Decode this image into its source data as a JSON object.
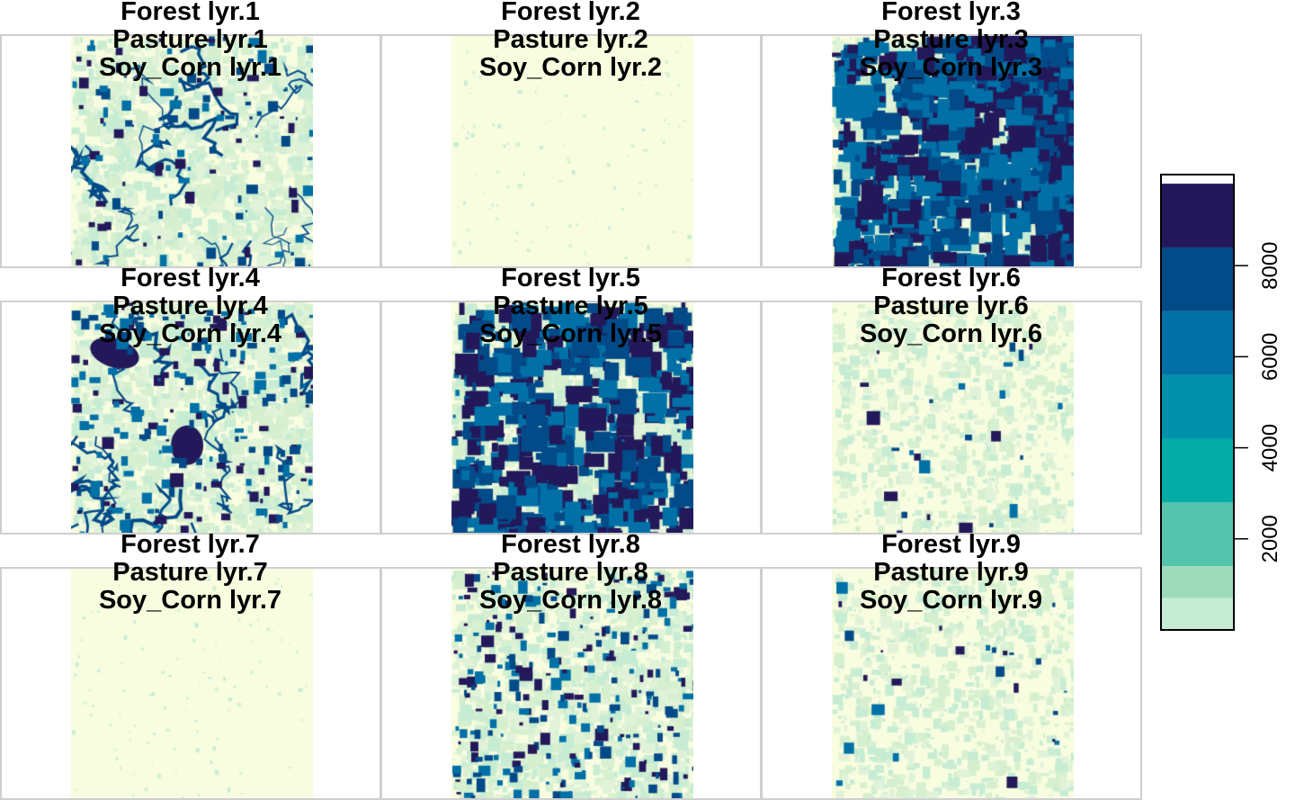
{
  "chart_data": {
    "type": "heatmap",
    "description_kind": "raster panel grid",
    "panels": [
      {
        "titles": [
          "Forest lyr.1",
          "Pasture lyr.1",
          "Soy_Corn lyr.1"
        ],
        "pattern": "rivers"
      },
      {
        "titles": [
          "Forest lyr.2",
          "Pasture lyr.2",
          "Soy_Corn lyr.2"
        ],
        "pattern": "sparse"
      },
      {
        "titles": [
          "Forest lyr.3",
          "Pasture lyr.3",
          "Soy_Corn lyr.3"
        ],
        "pattern": "dense"
      },
      {
        "titles": [
          "Forest lyr.4",
          "Pasture lyr.4",
          "Soy_Corn lyr.4"
        ],
        "pattern": "urban"
      },
      {
        "titles": [
          "Forest lyr.5",
          "Pasture lyr.5",
          "Soy_Corn lyr.5"
        ],
        "pattern": "patches"
      },
      {
        "titles": [
          "Forest lyr.6",
          "Pasture lyr.6",
          "Soy_Corn lyr.6"
        ],
        "pattern": "light"
      },
      {
        "titles": [
          "Forest lyr.7",
          "Pasture lyr.7",
          "Soy_Corn lyr.7"
        ],
        "pattern": "sparse"
      },
      {
        "titles": [
          "Forest lyr.8",
          "Pasture lyr.8",
          "Soy_Corn lyr.8"
        ],
        "pattern": "medium"
      },
      {
        "titles": [
          "Forest lyr.9",
          "Pasture lyr.9",
          "Soy_Corn lyr.9"
        ],
        "pattern": "light"
      }
    ],
    "legend": {
      "breaks": [
        0,
        700,
        1400,
        2800,
        4200,
        5600,
        7000,
        8400,
        9800,
        10500
      ],
      "colors": [
        "#c7ecd4",
        "#9edbbd",
        "#56c4ad",
        "#04aca6",
        "#0190ab",
        "#0170a6",
        "#034a88",
        "#23195a"
      ],
      "ticks": [
        2000,
        4000,
        6000,
        8000
      ],
      "tick_labels": [
        "2000",
        "4000",
        "6000",
        "8000"
      ],
      "range": [
        0,
        10000
      ]
    },
    "background_color": "#f8fde0"
  }
}
